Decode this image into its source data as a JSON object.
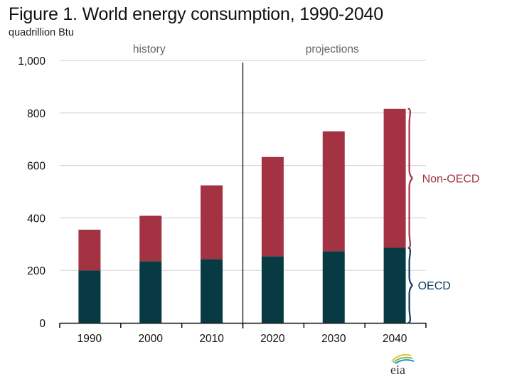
{
  "header": {
    "title": "Figure 1. World energy consumption, 1990-2040",
    "subtitle": "quadrillion  Btu"
  },
  "logo": {
    "text": "eia"
  },
  "chart_data": {
    "type": "bar",
    "stacked": true,
    "title": "Figure 1. World energy consumption, 1990-2040",
    "ylabel": "quadrillion Btu",
    "xlabel": "",
    "categories": [
      "1990",
      "2000",
      "2010",
      "2020",
      "2030",
      "2040"
    ],
    "series": [
      {
        "name": "OECD",
        "color": "#073A42",
        "values": [
          200,
          235,
          243,
          254,
          273,
          286
        ]
      },
      {
        "name": "Non-OECD",
        "color": "#A33242",
        "values": [
          155,
          173,
          281,
          378,
          457,
          530
        ]
      }
    ],
    "totals": [
      355,
      408,
      524,
      632,
      730,
      816
    ],
    "ylim": [
      0,
      1000
    ],
    "yticks": [
      0,
      200,
      400,
      600,
      800,
      1000
    ],
    "ytick_labels": [
      "0",
      "200",
      "400",
      "600",
      "800",
      "1,000"
    ],
    "grid": true,
    "sections": [
      {
        "label": "history",
        "from_index": 0,
        "to_index": 2
      },
      {
        "label": "projections",
        "from_index": 3,
        "to_index": 5
      }
    ],
    "annotations": [
      {
        "text": "Non-OECD",
        "color": "#A33242",
        "brace_on": "2040",
        "series": "Non-OECD"
      },
      {
        "text": "OECD",
        "color": "#0B3A5C",
        "brace_on": "2040",
        "series": "OECD"
      }
    ],
    "legend": "right"
  }
}
